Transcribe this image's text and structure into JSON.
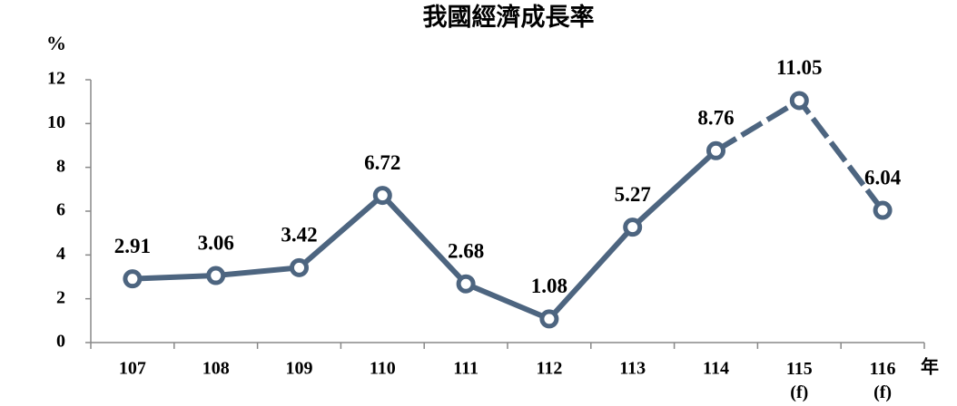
{
  "chart_data": {
    "type": "line",
    "title": "我國經濟成長率",
    "y_label": "%",
    "x_label": "年",
    "categories": [
      "107",
      "108",
      "109",
      "110",
      "111",
      "112",
      "113",
      "114",
      "115\n(f)",
      "116\n(f)"
    ],
    "values": [
      2.91,
      3.06,
      3.42,
      6.72,
      2.68,
      1.08,
      5.27,
      8.76,
      11.05,
      6.04
    ],
    "color": "#4d6580",
    "dashed_from": 7,
    "ylim": [
      0,
      12
    ],
    "yticks": [
      0,
      2,
      4,
      6,
      8,
      10,
      12
    ]
  }
}
